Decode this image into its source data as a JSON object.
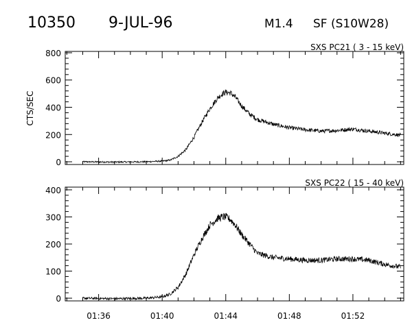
{
  "header": {
    "event_number": "10350",
    "date": "9-JUL-96",
    "goes_class": "M1.4",
    "flare_location": "SF (S10W28)"
  },
  "colors": {
    "ink": "#000000",
    "background": "#ffffff"
  },
  "chart_data": [
    {
      "type": "line",
      "title": "SXS PC21  (  3 - 15 keV)",
      "ylabel": "CTS/SEC",
      "xlabel": "",
      "x_unit": "minutes after 01:00 UT",
      "xlim": [
        33.9,
        55.2
      ],
      "ylim": [
        -20,
        810
      ],
      "yticks": [
        0,
        200,
        400,
        600,
        800
      ],
      "xticks": [
        "01:36",
        "01:40",
        "01:44",
        "01:48",
        "01:52"
      ],
      "grid": false,
      "series": [
        {
          "x": [
            35.0,
            37.0,
            39.0,
            40.0,
            40.5,
            41.0,
            41.5,
            42.0,
            42.5,
            43.0,
            43.5,
            43.8,
            44.0,
            44.3,
            44.6,
            45.0,
            45.5,
            46.0,
            47.0,
            48.0,
            49.0,
            50.0,
            51.0,
            52.0,
            53.0,
            54.0,
            55.0
          ],
          "y": [
            0,
            -2,
            0,
            5,
            12,
            40,
            90,
            180,
            290,
            390,
            470,
            500,
            510,
            505,
            475,
            410,
            350,
            310,
            275,
            250,
            235,
            225,
            230,
            240,
            225,
            210,
            195
          ],
          "noise": 14
        }
      ]
    },
    {
      "type": "line",
      "title": "SXS PC22  ( 15 - 40 keV)",
      "ylabel": "",
      "xlabel": "",
      "x_unit": "minutes after 01:00 UT",
      "xlim": [
        33.9,
        55.2
      ],
      "ylim": [
        -10,
        410
      ],
      "yticks": [
        0,
        100,
        200,
        300,
        400
      ],
      "xticks": [
        "01:36",
        "01:40",
        "01:44",
        "01:48",
        "01:52"
      ],
      "grid": false,
      "series": [
        {
          "x": [
            35.0,
            37.0,
            39.0,
            40.0,
            40.5,
            41.0,
            41.5,
            42.0,
            42.5,
            43.0,
            43.5,
            43.8,
            44.0,
            44.3,
            44.6,
            45.0,
            45.5,
            46.0,
            47.0,
            48.0,
            49.0,
            50.0,
            51.0,
            52.0,
            53.0,
            54.0,
            55.0
          ],
          "y": [
            0,
            -2,
            0,
            5,
            15,
            40,
            90,
            160,
            220,
            270,
            295,
            300,
            300,
            290,
            270,
            235,
            200,
            165,
            150,
            145,
            140,
            140,
            145,
            145,
            140,
            125,
            115
          ],
          "noise": 12
        }
      ]
    }
  ]
}
